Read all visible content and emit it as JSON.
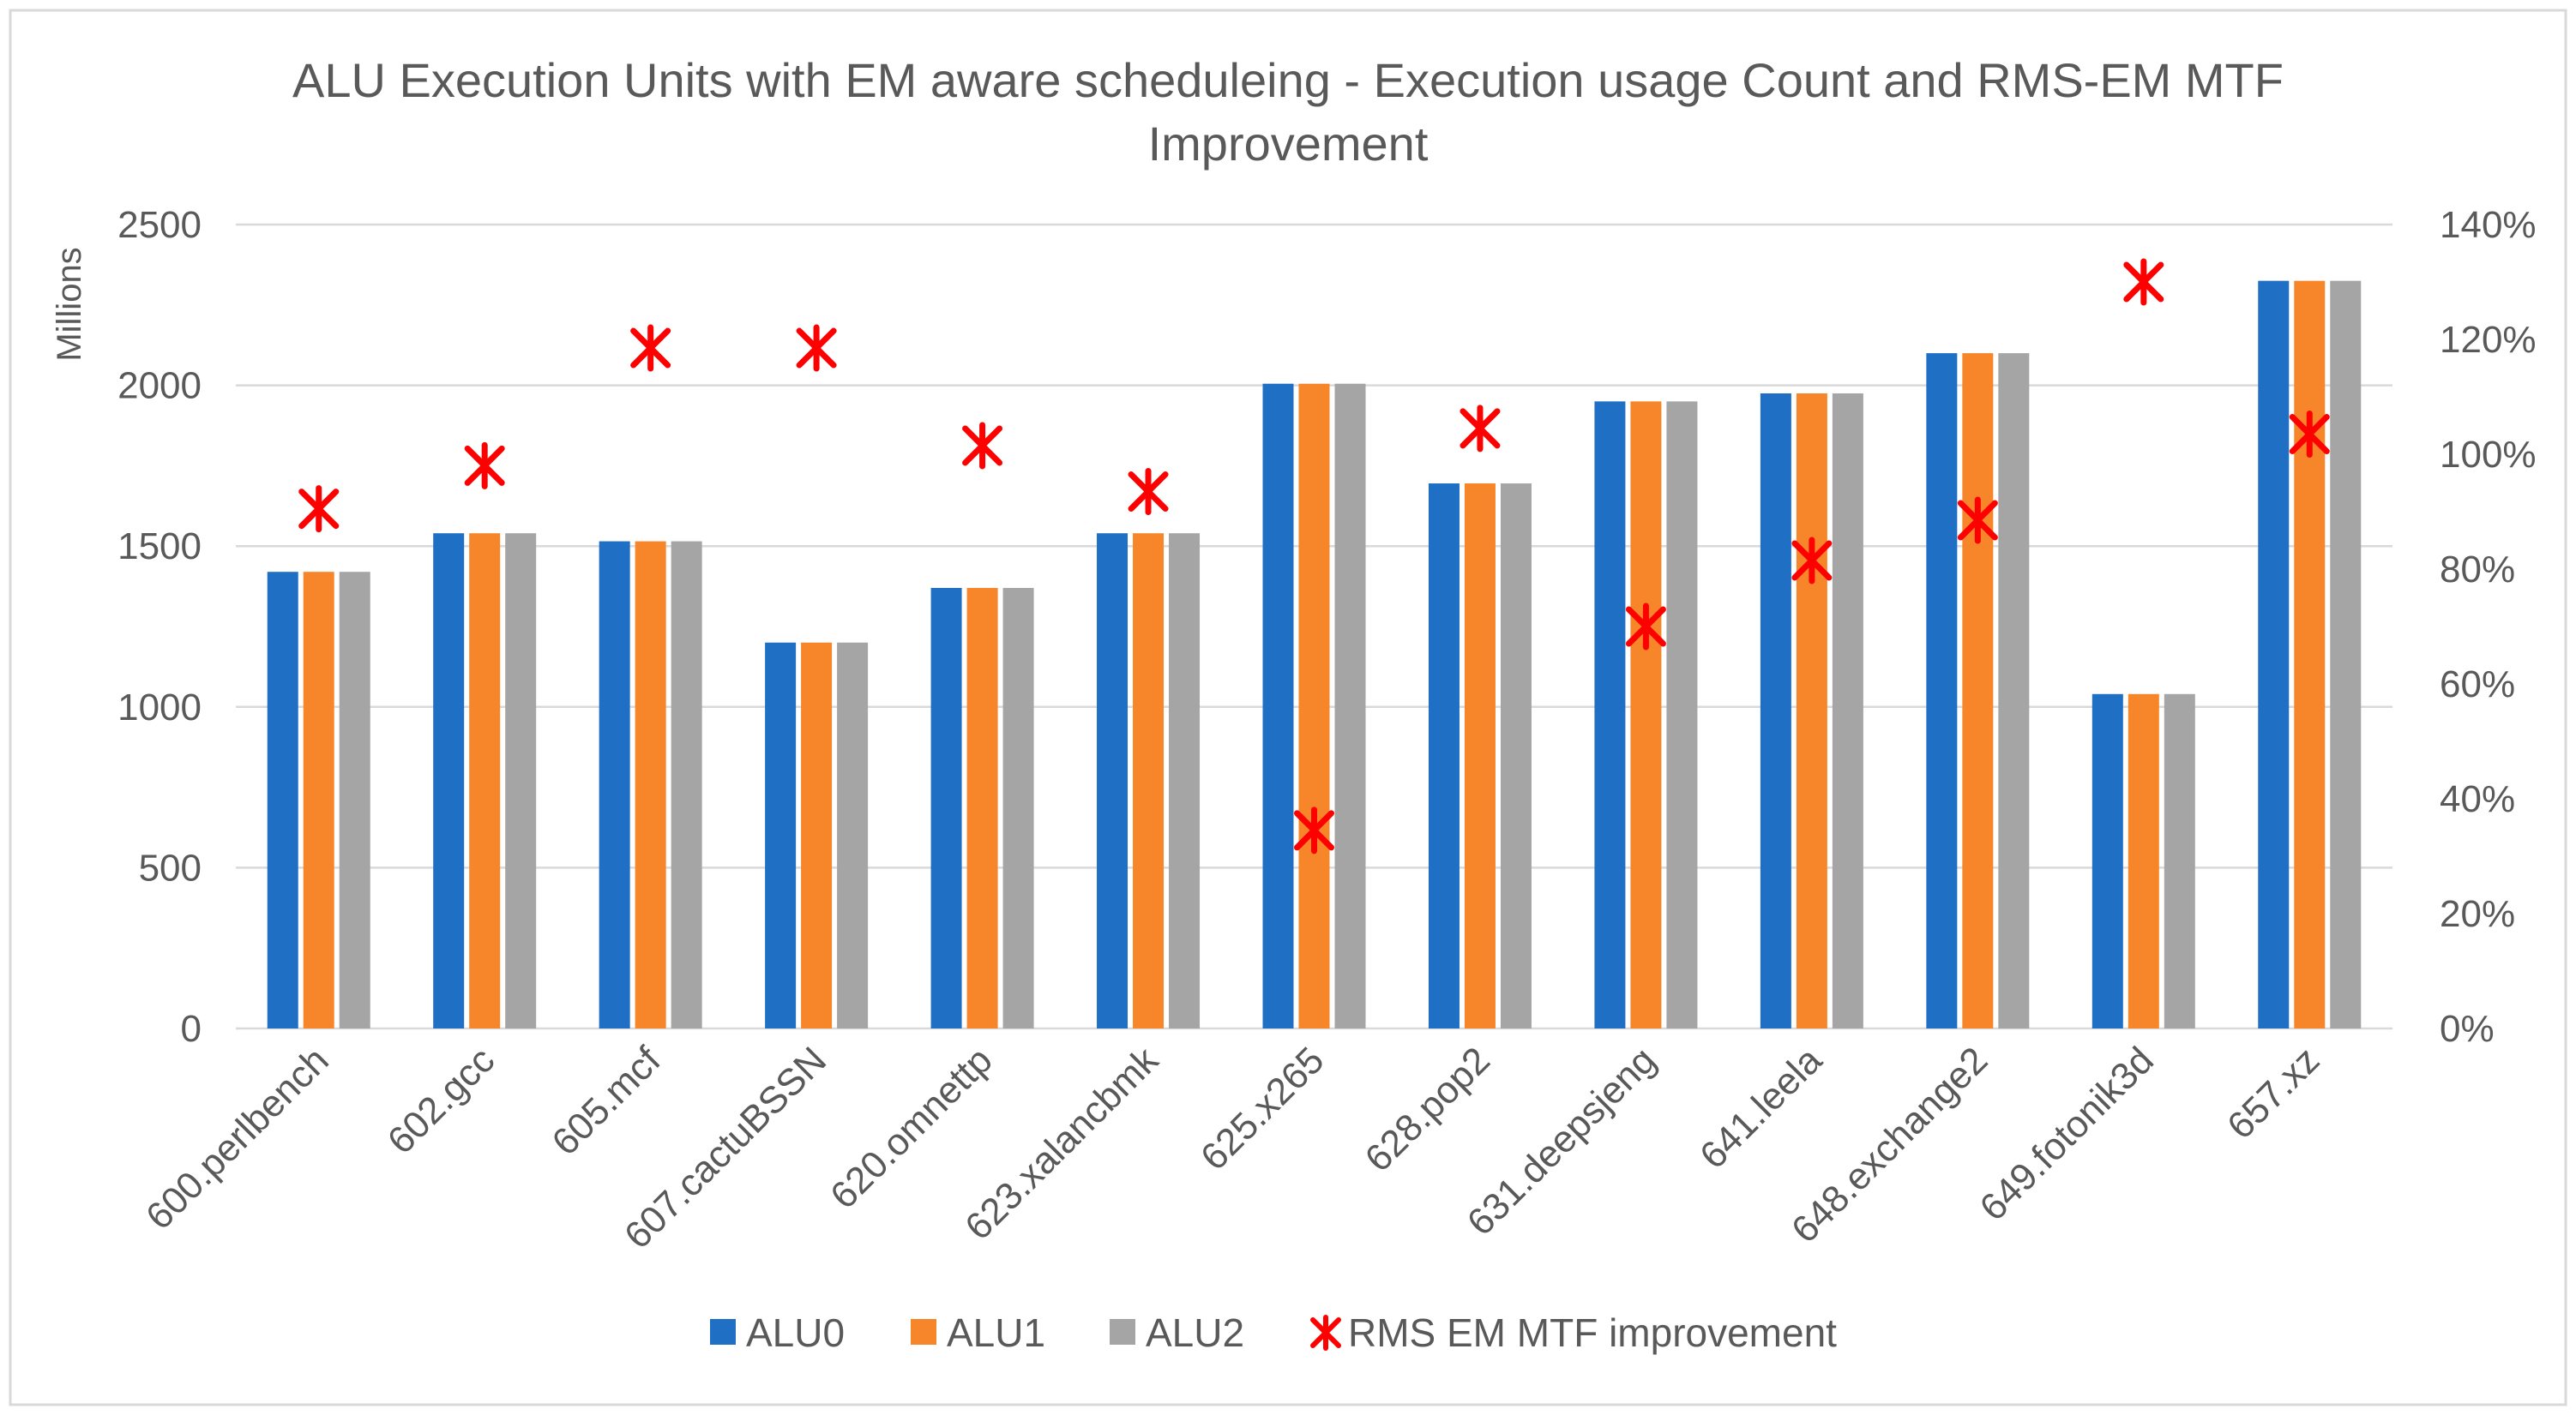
{
  "chart_data": {
    "type": "bar",
    "title_lines": [
      "ALU Execution Units with EM aware scheduleing - Execution usage Count and RMS-EM MTF",
      "Improvement"
    ],
    "xlabel": "",
    "ylabel": "Millions",
    "ylim": [
      0,
      2500
    ],
    "y_ticks": [
      0,
      500,
      1000,
      1500,
      2000,
      2500
    ],
    "y_tick_labels": [
      "0",
      "500",
      "1000",
      "1500",
      "2000",
      "2500"
    ],
    "y2lim": [
      0,
      1.4
    ],
    "y2_ticks": [
      0,
      0.2,
      0.4,
      0.6,
      0.8,
      1.0,
      1.2,
      1.4
    ],
    "y2_tick_labels": [
      "0%",
      "20%",
      "40%",
      "60%",
      "80%",
      "100%",
      "120%",
      "140%"
    ],
    "grid": true,
    "legend_position": "bottom",
    "categories": [
      "600.perlbench",
      "602.gcc",
      "605.mcf",
      "607.cactuBSSN",
      "620.omnettp",
      "623.xalancbmk",
      "625.x265",
      "628.pop2",
      "631.deepsjeng",
      "641.leela",
      "648.exchange2",
      "649.fotonik3d",
      "657.xz"
    ],
    "series": [
      {
        "name": "ALU0",
        "kind": "bar",
        "axis": "left",
        "color": "#1F6FC5",
        "values": [
          1420,
          1540,
          1515,
          1200,
          1370,
          1540,
          2005,
          1695,
          1950,
          1975,
          2100,
          1040,
          2325
        ]
      },
      {
        "name": "ALU1",
        "kind": "bar",
        "axis": "left",
        "color": "#F7862A",
        "values": [
          1420,
          1540,
          1515,
          1200,
          1370,
          1540,
          2005,
          1695,
          1950,
          1975,
          2100,
          1040,
          2325
        ]
      },
      {
        "name": "ALU2",
        "kind": "bar",
        "axis": "left",
        "color": "#A5A5A5",
        "values": [
          1420,
          1540,
          1515,
          1200,
          1370,
          1540,
          2005,
          1695,
          1950,
          1975,
          2100,
          1040,
          2325
        ]
      },
      {
        "name": "RMS EM MTF improvement",
        "kind": "marker",
        "axis": "right",
        "color": "#FF0000",
        "values": [
          0.905,
          0.98,
          1.185,
          1.185,
          1.015,
          0.935,
          0.345,
          1.045,
          0.7,
          0.815,
          0.885,
          1.3,
          1.035
        ]
      }
    ]
  }
}
